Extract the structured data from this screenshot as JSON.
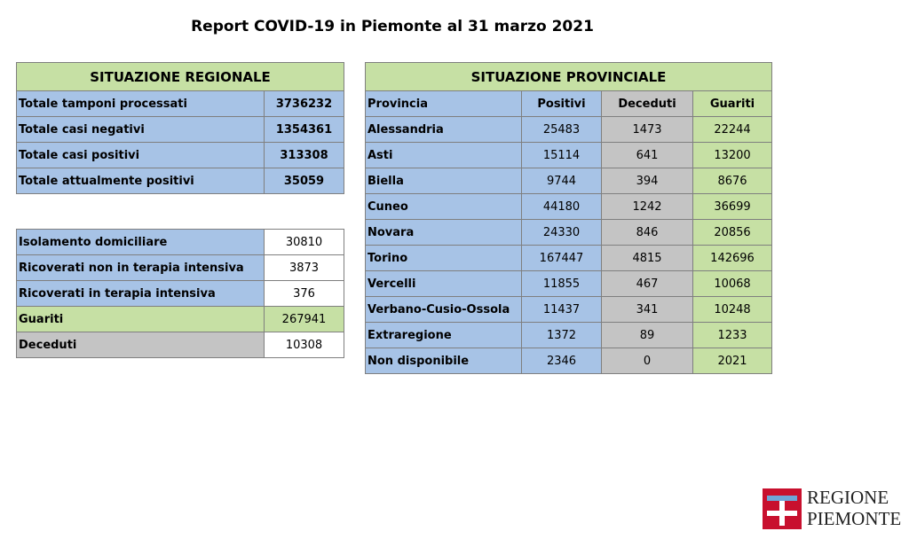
{
  "title": "Report COVID-19 in Piemonte al 31 marzo 2021",
  "regional": {
    "header": "SITUAZIONE REGIONALE",
    "rows": [
      {
        "label": "Totale tamponi processati",
        "value": "3736232"
      },
      {
        "label": "Totale casi negativi",
        "value": "1354361"
      },
      {
        "label": "Totale casi positivi",
        "value": "313308"
      },
      {
        "label": "Totale attualmente positivi",
        "value": "35059"
      }
    ],
    "rows2": [
      {
        "label": "Isolamento domiciliare",
        "value": "30810"
      },
      {
        "label": "Ricoverati non in terapia intensiva",
        "value": "3873"
      },
      {
        "label": "Ricoverati in terapia intensiva",
        "value": "376"
      },
      {
        "label": "Guariti",
        "value": "267941"
      },
      {
        "label": "Deceduti",
        "value": "10308"
      }
    ]
  },
  "provincial": {
    "header": "SITUAZIONE PROVINCIALE",
    "columns": [
      "Provincia",
      "Positivi",
      "Deceduti",
      "Guariti"
    ],
    "rows": [
      {
        "name": "Alessandria",
        "positivi": "25483",
        "deceduti": "1473",
        "guariti": "22244"
      },
      {
        "name": "Asti",
        "positivi": "15114",
        "deceduti": "641",
        "guariti": "13200"
      },
      {
        "name": "Biella",
        "positivi": "9744",
        "deceduti": "394",
        "guariti": "8676"
      },
      {
        "name": "Cuneo",
        "positivi": "44180",
        "deceduti": "1242",
        "guariti": "36699"
      },
      {
        "name": "Novara",
        "positivi": "24330",
        "deceduti": "846",
        "guariti": "20856"
      },
      {
        "name": "Torino",
        "positivi": "167447",
        "deceduti": "4815",
        "guariti": "142696"
      },
      {
        "name": "Vercelli",
        "positivi": "11855",
        "deceduti": "467",
        "guariti": "10068"
      },
      {
        "name": "Verbano-Cusio-Ossola",
        "positivi": "11437",
        "deceduti": "341",
        "guariti": "10248"
      },
      {
        "name": "Extraregione",
        "positivi": "1372",
        "deceduti": "89",
        "guariti": "1233"
      },
      {
        "name": "Non disponibile",
        "positivi": "2346",
        "deceduti": "0",
        "guariti": "2021"
      }
    ]
  },
  "logo": {
    "icon": "regione-piemonte-cross-icon",
    "line1": "REGIONE",
    "line2": "PIEMONTE"
  }
}
